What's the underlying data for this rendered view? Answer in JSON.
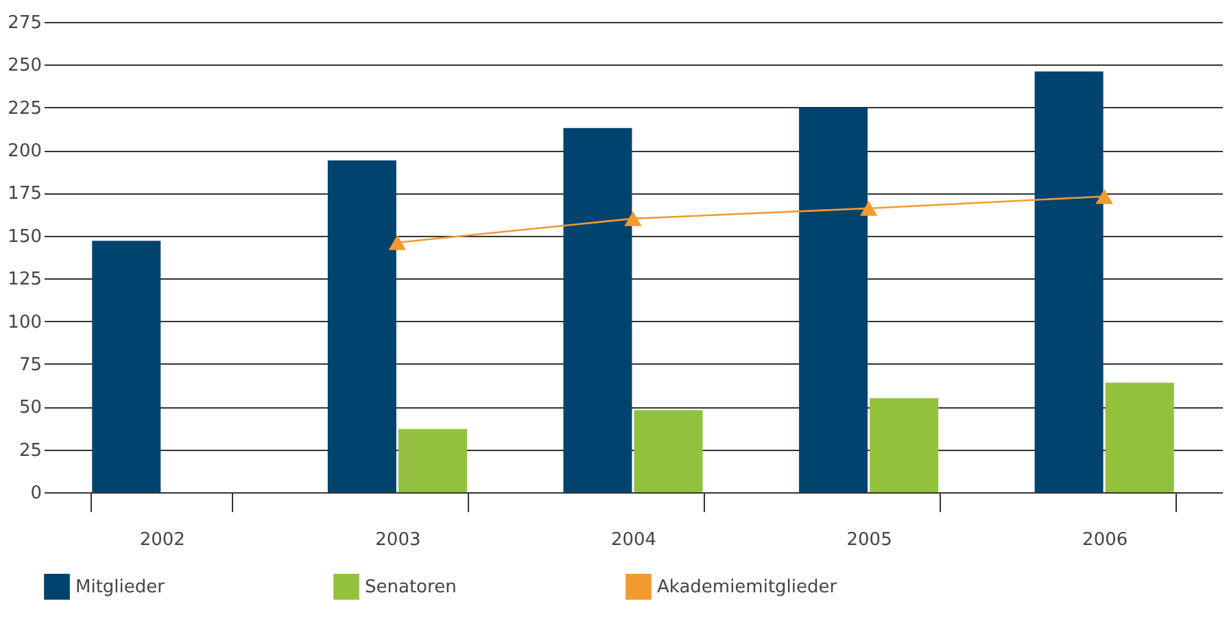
{
  "chart_data": {
    "type": "bar",
    "categories": [
      "2002",
      "2003",
      "2004",
      "2005",
      "2006"
    ],
    "series": [
      {
        "name": "Mitglieder",
        "color": "#00436e",
        "values": [
          147,
          194,
          213,
          225,
          246
        ]
      },
      {
        "name": "Senatoren",
        "color": "#92c13e",
        "values": [
          null,
          37,
          48,
          55,
          64
        ]
      },
      {
        "name": "Akademiemitglieder",
        "color": "#f39a2e",
        "type": "line",
        "marker": "triangle",
        "values": [
          null,
          146,
          160,
          166,
          173
        ]
      }
    ],
    "ylim": [
      0,
      275
    ],
    "yticks": [
      0,
      25,
      50,
      75,
      100,
      125,
      150,
      175,
      200,
      225,
      250,
      275
    ],
    "grid": "y",
    "legend": "bottom"
  }
}
